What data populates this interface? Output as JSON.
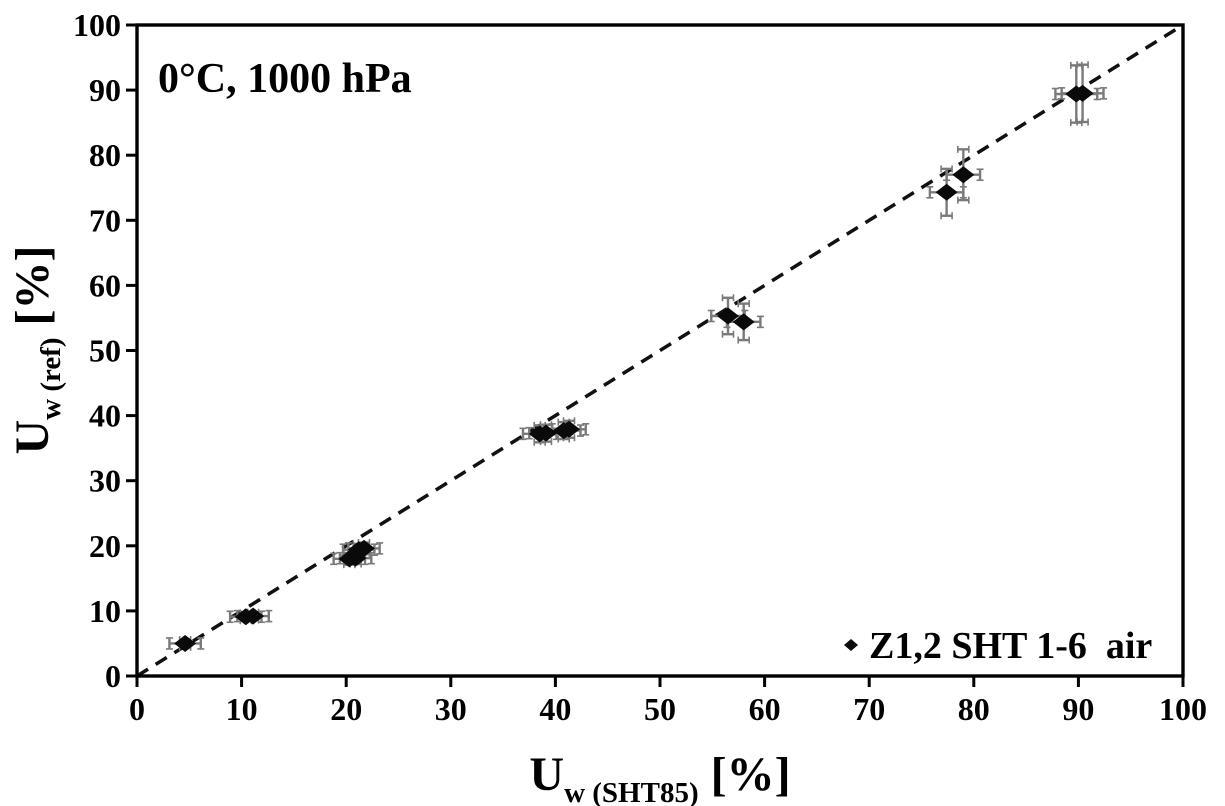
{
  "chart_data": {
    "type": "scatter",
    "annotation": "0°C, 1000 hPa",
    "xlabel": {
      "main": "U",
      "sub": "w (SHT85)",
      "unit": " [%]"
    },
    "ylabel": {
      "main": "U",
      "sub": "w (ref)",
      "unit": " [%]"
    },
    "xlim": [
      0,
      100
    ],
    "ylim": [
      0,
      100
    ],
    "xticks": [
      0,
      10,
      20,
      30,
      40,
      50,
      60,
      70,
      80,
      90,
      100
    ],
    "yticks": [
      0,
      10,
      20,
      30,
      40,
      50,
      60,
      70,
      80,
      90,
      100
    ],
    "grid": false,
    "reference_line": {
      "style": "dashed",
      "from_xy": [
        0,
        0
      ],
      "to_xy": [
        100,
        100
      ]
    },
    "legend": {
      "position": "bottom-right-inside",
      "marker": "diamond",
      "label": "Z1,2 SHT 1-6  air"
    },
    "series": [
      {
        "name": "Z1,2 SHT 1-6 air",
        "marker": "diamond",
        "points": [
          {
            "x": 4.6,
            "y": 5.0,
            "xerr": 1.5,
            "yerr": 0.6
          },
          {
            "x": 10.4,
            "y": 9.1,
            "xerr": 1.5,
            "yerr": 0.6
          },
          {
            "x": 11.1,
            "y": 9.2,
            "xerr": 1.5,
            "yerr": 0.6
          },
          {
            "x": 20.3,
            "y": 18.0,
            "xerr": 1.5,
            "yerr": 0.9
          },
          {
            "x": 20.9,
            "y": 18.1,
            "xerr": 1.5,
            "yerr": 0.9
          },
          {
            "x": 21.2,
            "y": 19.4,
            "xerr": 1.5,
            "yerr": 0.9
          },
          {
            "x": 21.7,
            "y": 19.6,
            "xerr": 1.5,
            "yerr": 0.9
          },
          {
            "x": 38.5,
            "y": 37.2,
            "xerr": 1.6,
            "yerr": 1.3
          },
          {
            "x": 39.1,
            "y": 37.3,
            "xerr": 1.6,
            "yerr": 1.3
          },
          {
            "x": 40.8,
            "y": 37.7,
            "xerr": 1.6,
            "yerr": 1.3
          },
          {
            "x": 41.3,
            "y": 37.9,
            "xerr": 1.6,
            "yerr": 1.3
          },
          {
            "x": 56.5,
            "y": 55.3,
            "xerr": 1.6,
            "yerr": 2.8
          },
          {
            "x": 58.0,
            "y": 54.4,
            "xerr": 1.6,
            "yerr": 2.8
          },
          {
            "x": 77.4,
            "y": 74.3,
            "xerr": 1.6,
            "yerr": 3.6
          },
          {
            "x": 79.0,
            "y": 77.0,
            "xerr": 1.6,
            "yerr": 3.9
          },
          {
            "x": 89.8,
            "y": 89.4,
            "xerr": 2.0,
            "yerr": 4.4
          },
          {
            "x": 90.4,
            "y": 89.5,
            "xerr": 2.0,
            "yerr": 4.4
          }
        ]
      }
    ]
  },
  "colors": {
    "marker": "#0a0a0a",
    "error_bar": "#7a7a7a",
    "axis": "#000000",
    "reference_line": "#111111",
    "background": "#ffffff"
  }
}
